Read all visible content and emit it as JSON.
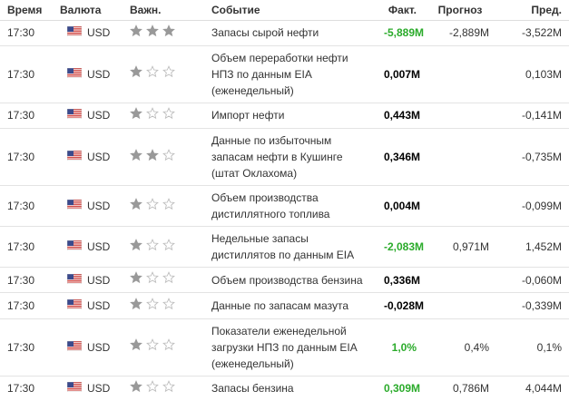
{
  "table": {
    "headers": [
      "Время",
      "Валюта",
      "Важн.",
      "Событие",
      "Факт.",
      "Прогноз",
      "Пред."
    ],
    "rows": [
      {
        "time": "17:30",
        "currency": "USD",
        "importance": 3,
        "event": "Запасы сырой нефти",
        "actual": "-5,889M",
        "actual_color": "#2bab2b",
        "forecast": "-2,889M",
        "previous": "-3,522M"
      },
      {
        "time": "17:30",
        "currency": "USD",
        "importance": 1,
        "event": "Объем переработки нефти НПЗ по данным EIA (еженедельный)",
        "actual": "0,007M",
        "actual_color": "#000000",
        "previous": "0,103M"
      },
      {
        "time": "17:30",
        "currency": "USD",
        "importance": 1,
        "event": "Импорт нефти",
        "actual": "0,443M",
        "actual_color": "#000000",
        "previous": "-0,141M"
      },
      {
        "time": "17:30",
        "currency": "USD",
        "importance": 2,
        "event": "Данные по избыточным запасам нефти в Кушинге (штат Оклахома)",
        "actual": "0,346M",
        "actual_color": "#000000",
        "previous": "-0,735M"
      },
      {
        "time": "17:30",
        "currency": "USD",
        "importance": 1,
        "event": "Объем производства дистиллятного топлива",
        "actual": "0,004M",
        "actual_color": "#000000",
        "previous": "-0,099M"
      },
      {
        "time": "17:30",
        "currency": "USD",
        "importance": 1,
        "event": "Недельные запасы дистиллятов по данным EIA",
        "actual": "-2,083M",
        "actual_color": "#2bab2b",
        "forecast": "0,971M",
        "previous": "1,452M"
      },
      {
        "time": "17:30",
        "currency": "USD",
        "importance": 1,
        "event": "Объем производства бензина",
        "actual": "0,336M",
        "actual_color": "#000000",
        "previous": "-0,060M"
      },
      {
        "time": "17:30",
        "currency": "USD",
        "importance": 1,
        "event": "Данные по запасам мазута",
        "actual": "-0,028M",
        "actual_color": "#000000",
        "previous": "-0,339M"
      },
      {
        "time": "17:30",
        "currency": "USD",
        "importance": 1,
        "event": "Показатели еженедельной загрузки НПЗ по данным EIA (еженедельный)",
        "actual": "1,0%",
        "actual_color": "#2bab2b",
        "forecast": "0,4%",
        "previous": "0,1%"
      },
      {
        "time": "17:30",
        "currency": "USD",
        "importance": 1,
        "event": "Запасы бензина",
        "actual": "0,309M",
        "actual_color": "#2bab2b",
        "forecast": "0,786M",
        "previous": "4,044M"
      }
    ]
  }
}
